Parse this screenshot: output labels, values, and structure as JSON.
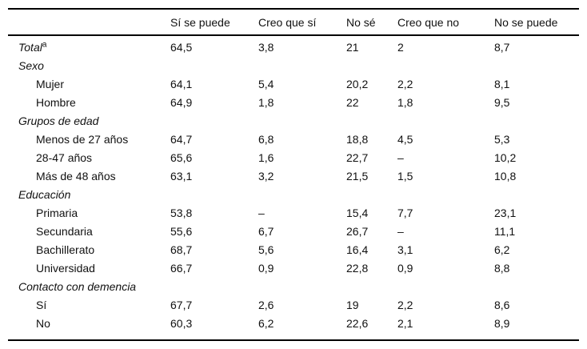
{
  "table": {
    "columns": [
      "",
      "Sí se puede",
      "Creo que sí",
      "No sé",
      "Creo que no",
      "No se puede"
    ],
    "rows": [
      {
        "type": "total",
        "label": "Total",
        "sup": "a",
        "values": [
          "64,5",
          "3,8",
          "21",
          "2",
          "8,7"
        ]
      },
      {
        "type": "section",
        "label": "Sexo",
        "values": [
          "",
          "",
          "",
          "",
          ""
        ]
      },
      {
        "type": "item",
        "label": "Mujer",
        "values": [
          "64,1",
          "5,4",
          "20,2",
          "2,2",
          "8,1"
        ]
      },
      {
        "type": "item",
        "label": "Hombre",
        "values": [
          "64,9",
          "1,8",
          "22",
          "1,8",
          "9,5"
        ]
      },
      {
        "type": "section",
        "label": "Grupos de edad",
        "values": [
          "",
          "",
          "",
          "",
          ""
        ]
      },
      {
        "type": "item",
        "label": "Menos de 27 años",
        "values": [
          "64,7",
          "6,8",
          "18,8",
          "4,5",
          "5,3"
        ]
      },
      {
        "type": "item",
        "label": "28-47 años",
        "values": [
          "65,6",
          "1,6",
          "22,7",
          "–",
          "10,2"
        ]
      },
      {
        "type": "item",
        "label": "Más de 48 años",
        "values": [
          "63,1",
          "3,2",
          "21,5",
          "1,5",
          "10,8"
        ]
      },
      {
        "type": "section",
        "label": "Educación",
        "values": [
          "",
          "",
          "",
          "",
          ""
        ]
      },
      {
        "type": "item",
        "label": "Primaria",
        "values": [
          "53,8",
          "–",
          "15,4",
          "7,7",
          "23,1"
        ]
      },
      {
        "type": "item",
        "label": "Secundaria",
        "values": [
          "55,6",
          "6,7",
          "26,7",
          "–",
          "11,1"
        ]
      },
      {
        "type": "item",
        "label": "Bachillerato",
        "values": [
          "68,7",
          "5,6",
          "16,4",
          "3,1",
          "6,2"
        ]
      },
      {
        "type": "item",
        "label": "Universidad",
        "values": [
          "66,7",
          "0,9",
          "22,8",
          "0,9",
          "8,8"
        ]
      },
      {
        "type": "section",
        "label": "Contacto con demencia",
        "values": [
          "",
          "",
          "",
          "",
          ""
        ]
      },
      {
        "type": "item",
        "label": "Sí",
        "values": [
          "67,7",
          "2,6",
          "19",
          "2,2",
          "8,6"
        ]
      },
      {
        "type": "item",
        "label": "No",
        "values": [
          "60,3",
          "6,2",
          "22,6",
          "2,1",
          "8,9"
        ]
      }
    ]
  },
  "chart_data": {
    "type": "table",
    "title": "",
    "columns": [
      "Sí se puede",
      "Creo que sí",
      "No sé",
      "Creo que no",
      "No se puede"
    ],
    "series": [
      {
        "name": "Total",
        "values": [
          64.5,
          3.8,
          21,
          2,
          8.7
        ]
      },
      {
        "name": "Mujer",
        "values": [
          64.1,
          5.4,
          20.2,
          2.2,
          8.1
        ]
      },
      {
        "name": "Hombre",
        "values": [
          64.9,
          1.8,
          22,
          1.8,
          9.5
        ]
      },
      {
        "name": "Menos de 27 años",
        "values": [
          64.7,
          6.8,
          18.8,
          4.5,
          5.3
        ]
      },
      {
        "name": "28-47 años",
        "values": [
          65.6,
          1.6,
          22.7,
          null,
          10.2
        ]
      },
      {
        "name": "Más de 48 años",
        "values": [
          63.1,
          3.2,
          21.5,
          1.5,
          10.8
        ]
      },
      {
        "name": "Primaria",
        "values": [
          53.8,
          null,
          15.4,
          7.7,
          23.1
        ]
      },
      {
        "name": "Secundaria",
        "values": [
          55.6,
          6.7,
          26.7,
          null,
          11.1
        ]
      },
      {
        "name": "Bachillerato",
        "values": [
          68.7,
          5.6,
          16.4,
          3.1,
          6.2
        ]
      },
      {
        "name": "Universidad",
        "values": [
          66.7,
          0.9,
          22.8,
          0.9,
          8.8
        ]
      },
      {
        "name": "Contacto sí",
        "values": [
          67.7,
          2.6,
          19,
          2.2,
          8.6
        ]
      },
      {
        "name": "Contacto no",
        "values": [
          60.3,
          6.2,
          22.6,
          2.1,
          8.9
        ]
      }
    ]
  }
}
